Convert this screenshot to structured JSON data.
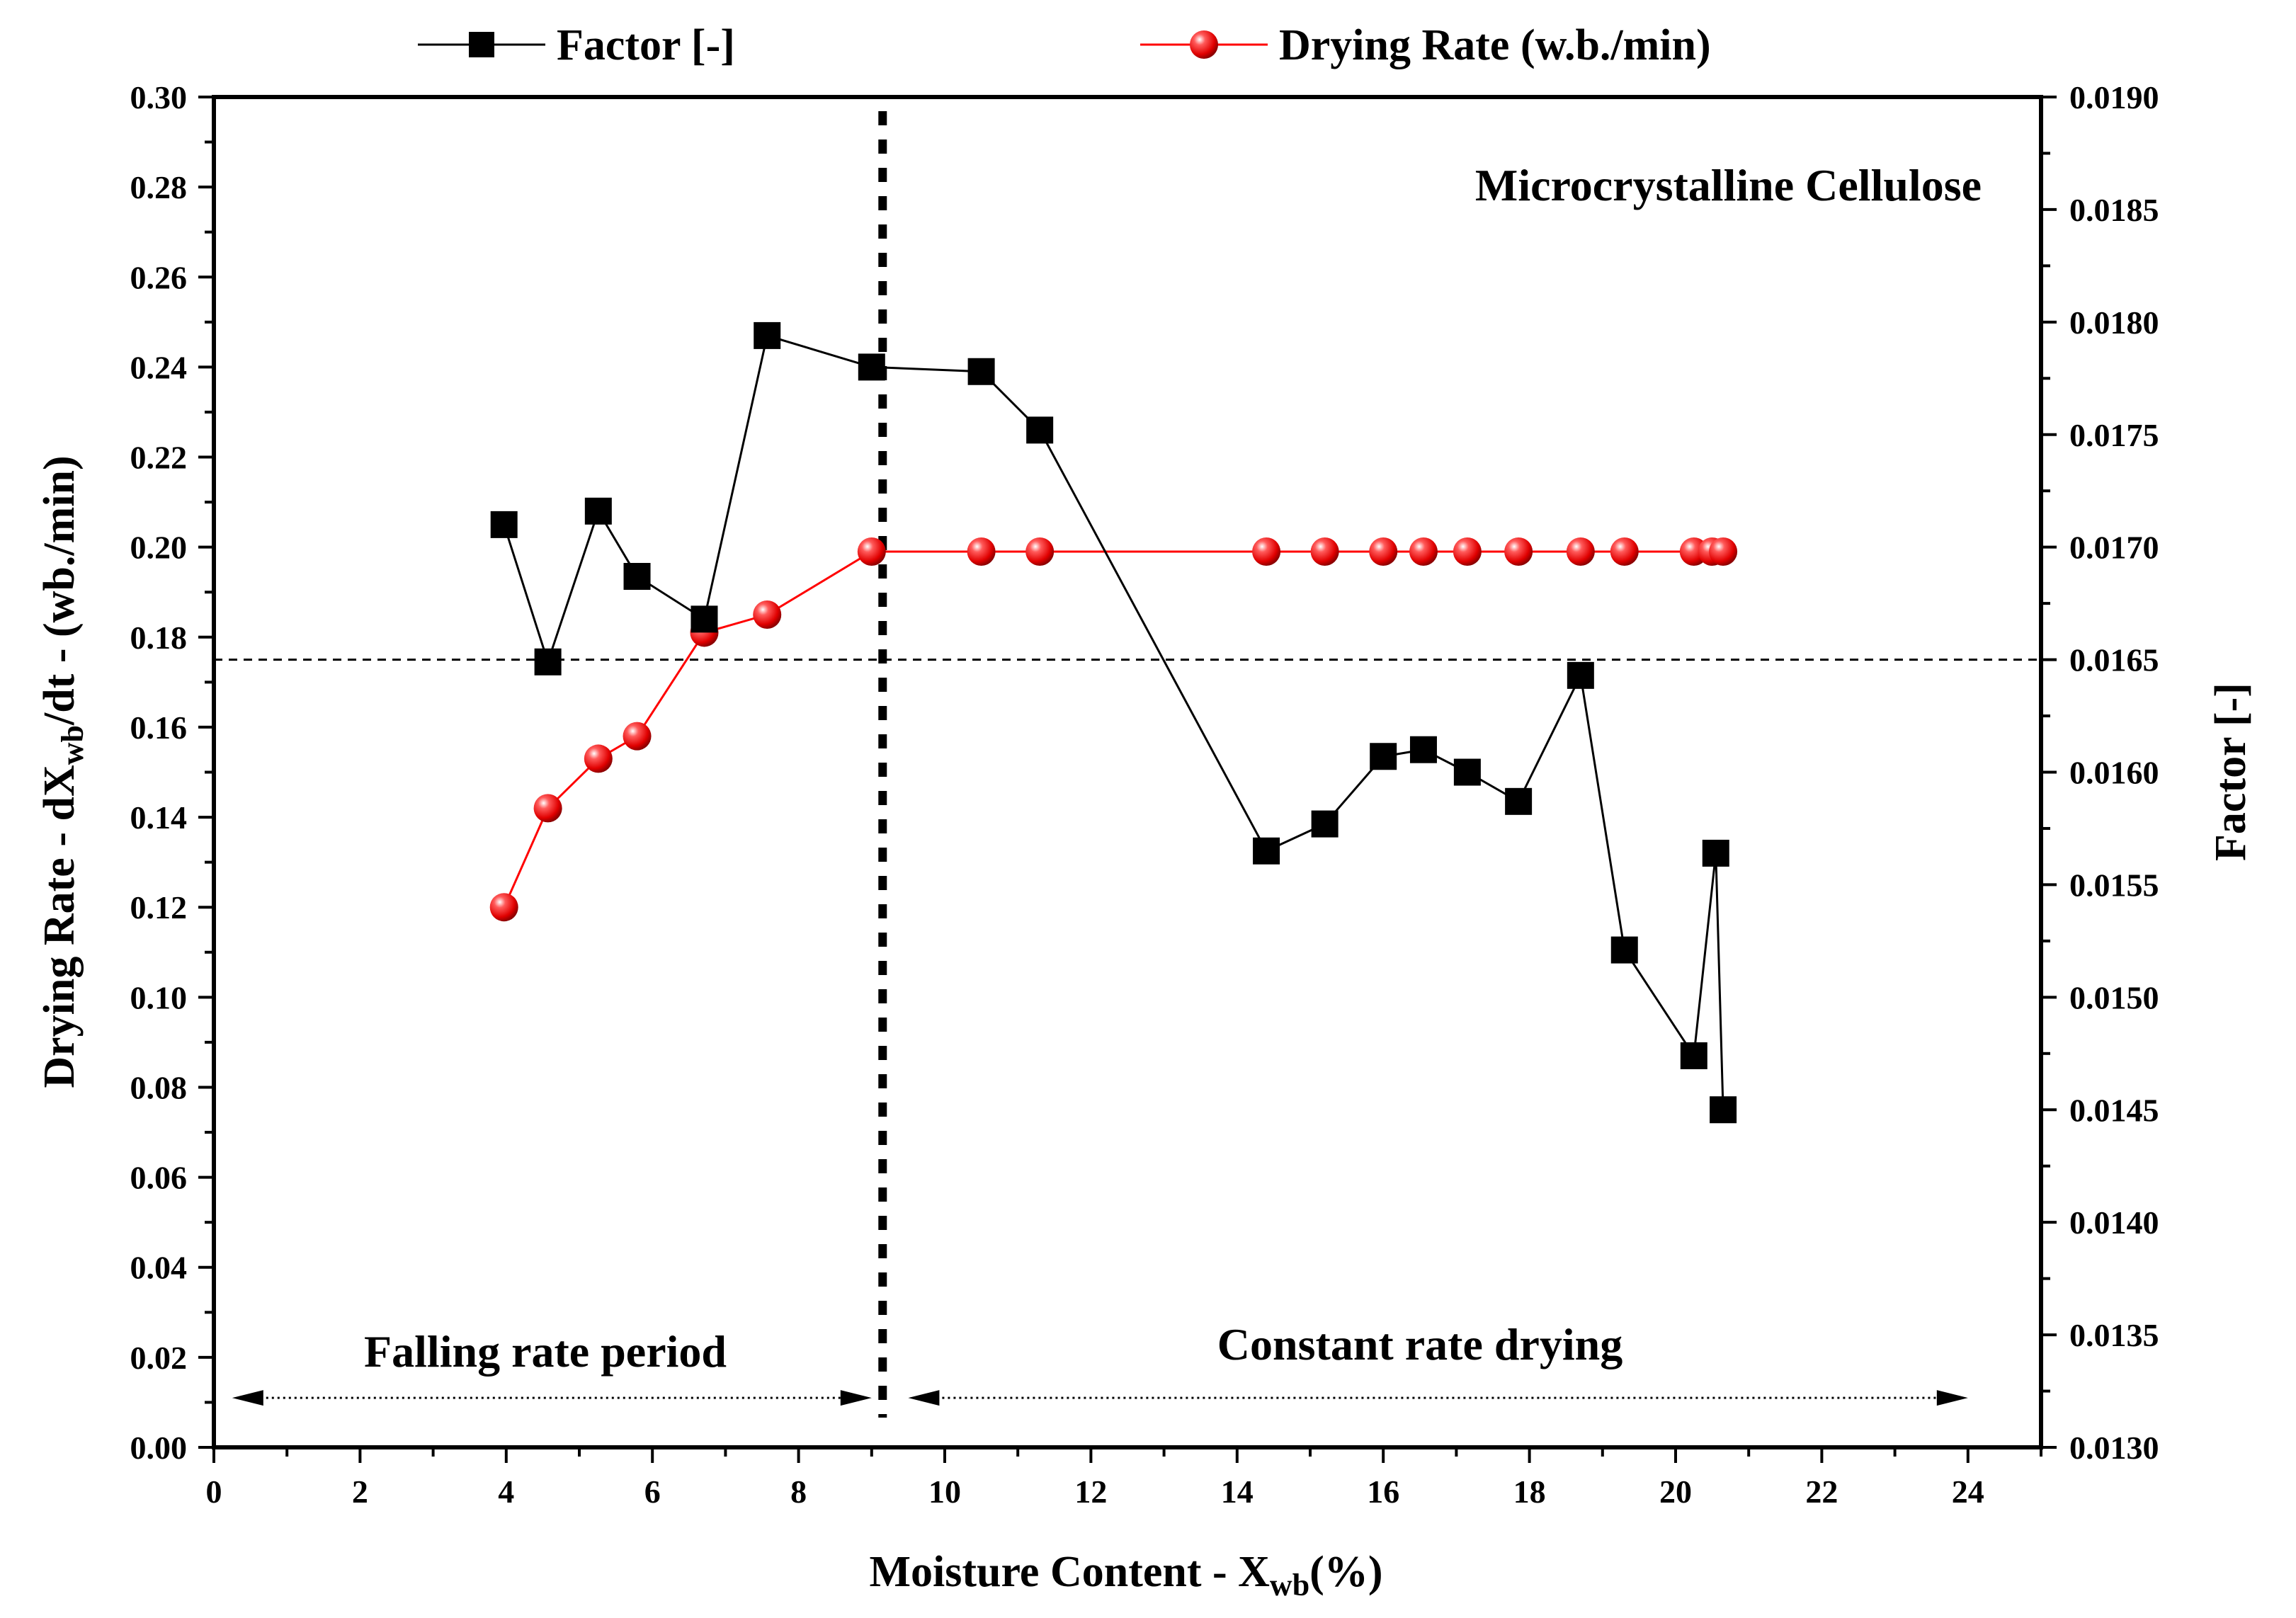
{
  "chart_data": {
    "type": "line",
    "x": {
      "title_main": "Moisture Content - X",
      "title_sub": "wb",
      "title_tail": "(%)",
      "range": [
        0,
        25
      ],
      "ticks": [
        0,
        2,
        4,
        6,
        8,
        10,
        12,
        14,
        16,
        18,
        20,
        22,
        24
      ],
      "tick_labels": [
        "0",
        "2",
        "4",
        "6",
        "8",
        "10",
        "12",
        "14",
        "16",
        "18",
        "20",
        "22",
        "24"
      ]
    },
    "y_left": {
      "title_a": "Drying Rate - dX",
      "title_sub": "wb",
      "title_b": "/dt - (wb./min)",
      "range": [
        0,
        0.3
      ],
      "ticks": [
        0,
        0.02,
        0.04,
        0.06,
        0.08,
        0.1,
        0.12,
        0.14,
        0.16,
        0.18,
        0.2,
        0.22,
        0.24,
        0.26,
        0.28,
        0.3
      ],
      "tick_labels": [
        "0.00",
        "0.02",
        "0.04",
        "0.06",
        "0.08",
        "0.10",
        "0.12",
        "0.14",
        "0.16",
        "0.18",
        "0.20",
        "0.22",
        "0.24",
        "0.26",
        "0.28",
        "0.30"
      ]
    },
    "y_right": {
      "title": "Factor [-]",
      "range": [
        0.013,
        0.019
      ],
      "ticks": [
        0.013,
        0.0135,
        0.014,
        0.0145,
        0.015,
        0.0155,
        0.016,
        0.0165,
        0.017,
        0.0175,
        0.018,
        0.0185,
        0.019
      ],
      "tick_labels": [
        "0.0130",
        "0.0135",
        "0.0140",
        "0.0145",
        "0.0150",
        "0.0155",
        "0.0160",
        "0.0165",
        "0.0170",
        "0.0175",
        "0.0180",
        "0.0185",
        "0.0190"
      ]
    },
    "series": [
      {
        "name": "Factor [-]",
        "axis": "right",
        "marker": "square",
        "color": "#000000",
        "points": [
          [
            3.97,
            0.0171
          ],
          [
            4.57,
            0.01649
          ],
          [
            5.26,
            0.01716
          ],
          [
            5.79,
            0.01687
          ],
          [
            6.71,
            0.01668
          ],
          [
            7.57,
            0.01794
          ],
          [
            9.0,
            0.0178
          ],
          [
            10.5,
            0.01778
          ],
          [
            11.3,
            0.01752
          ],
          [
            14.4,
            0.01565
          ],
          [
            15.2,
            0.01577
          ],
          [
            16.0,
            0.01607
          ],
          [
            16.55,
            0.0161
          ],
          [
            17.15,
            0.016
          ],
          [
            17.85,
            0.01587
          ],
          [
            18.7,
            0.01643
          ],
          [
            19.3,
            0.01521
          ],
          [
            20.25,
            0.01474
          ],
          [
            20.55,
            0.01564
          ],
          [
            20.65,
            0.0145
          ]
        ]
      },
      {
        "name": "Drying Rate (w.b./min)",
        "axis": "left",
        "marker": "sphere",
        "color": "#ff0000",
        "points": [
          [
            3.97,
            0.12
          ],
          [
            4.57,
            0.142
          ],
          [
            5.26,
            0.153
          ],
          [
            5.79,
            0.158
          ],
          [
            6.71,
            0.181
          ],
          [
            7.57,
            0.185
          ],
          [
            9.0,
            0.199
          ],
          [
            10.5,
            0.199
          ],
          [
            11.3,
            0.199
          ],
          [
            14.4,
            0.199
          ],
          [
            15.2,
            0.199
          ],
          [
            16.0,
            0.199
          ],
          [
            16.55,
            0.199
          ],
          [
            17.15,
            0.199
          ],
          [
            17.85,
            0.199
          ],
          [
            18.7,
            0.199
          ],
          [
            19.3,
            0.199
          ],
          [
            20.25,
            0.199
          ],
          [
            20.5,
            0.199
          ],
          [
            20.65,
            0.199
          ]
        ]
      }
    ],
    "reference_lines": {
      "horizontal_dashed_right_value": 0.0165,
      "vertical_dotted_x": 9.15
    },
    "annotations": {
      "material": "Microcrystalline Cellulose",
      "falling": "Falling rate period",
      "constant": "Constant rate drying"
    },
    "arrows": {
      "falling_x": [
        0.25,
        9.0
      ],
      "constant_x": [
        9.5,
        24.0
      ],
      "y_value": 0.011
    },
    "legend": {
      "placement": "top",
      "factor_label": "Factor [-]",
      "rate_label": "Drying Rate (w.b./min)"
    }
  }
}
